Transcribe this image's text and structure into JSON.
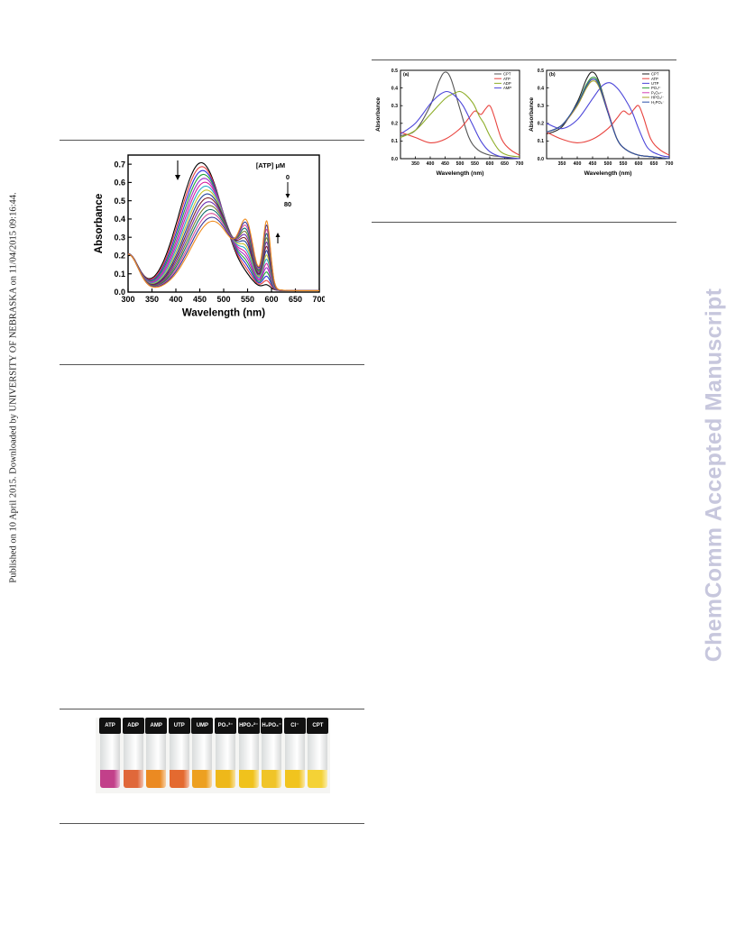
{
  "sidebar": {
    "text": "Published on 10 April 2015. Downloaded by UNIVERSITY OF NEBRASKA on 11/04/2015 09:16:44."
  },
  "watermark": {
    "text": "ChemComm Accepted Manuscript"
  },
  "figure_vials": {
    "labels": [
      "ATP",
      "ADP",
      "AMP",
      "UTP",
      "UMP",
      "PO₄³⁻",
      "HPO₄²⁻",
      "H₂PO₄⁻",
      "Cl⁻",
      "CPT"
    ],
    "liquid_colors": [
      "#c2408a",
      "#e0683a",
      "#eb8a22",
      "#e46a30",
      "#eda020",
      "#eeb81a",
      "#f0c21c",
      "#f0c428",
      "#f1c41e",
      "#f4d236"
    ]
  },
  "chart_data": [
    {
      "type": "line",
      "id": "titration",
      "xlabel": "Wavelength (nm)",
      "ylabel": "Absorbance",
      "xlim": [
        300,
        700
      ],
      "ylim": [
        0.0,
        0.75
      ],
      "xticks": [
        "300",
        "350",
        "400",
        "450",
        "500",
        "550",
        "600",
        "650",
        "700"
      ],
      "yticks": [
        "0.0",
        "0.1",
        "0.2",
        "0.3",
        "0.4",
        "0.5",
        "0.6",
        "0.7"
      ],
      "legend_title": "[ATP] μM",
      "range_start": "0",
      "range_end": "80",
      "curves": 16,
      "peak_start": 0.7,
      "peak_end": 0.38,
      "shoulder_start": 0.02,
      "shoulder_end": 0.3
    },
    {
      "type": "line",
      "id": "panel_a",
      "panel": "(a)",
      "xlabel": "Wavelength (nm)",
      "ylabel": "Absorbance",
      "xlim": [
        300,
        700
      ],
      "ylim": [
        0.0,
        0.5
      ],
      "xticks": [
        "350",
        "400",
        "450",
        "500",
        "550",
        "600",
        "650",
        "700"
      ],
      "yticks": [
        "0.0",
        "0.1",
        "0.2",
        "0.3",
        "0.4",
        "0.5"
      ],
      "series": [
        {
          "name": "CPT",
          "color": "#555555",
          "x": [
            300,
            350,
            400,
            430,
            450,
            470,
            500,
            530,
            560,
            600,
            650,
            700
          ],
          "y": [
            0.13,
            0.16,
            0.3,
            0.44,
            0.49,
            0.45,
            0.28,
            0.12,
            0.05,
            0.02,
            0.01,
            0.0
          ]
        },
        {
          "name": "ATP",
          "color": "#e8433e",
          "x": [
            300,
            350,
            400,
            450,
            500,
            530,
            550,
            570,
            585,
            600,
            615,
            640,
            670,
            700
          ],
          "y": [
            0.15,
            0.12,
            0.09,
            0.11,
            0.17,
            0.23,
            0.27,
            0.25,
            0.28,
            0.3,
            0.24,
            0.11,
            0.05,
            0.02
          ]
        },
        {
          "name": "ADP",
          "color": "#8fae2a",
          "x": [
            300,
            350,
            400,
            450,
            480,
            500,
            520,
            545,
            565,
            580,
            600,
            630,
            660,
            700
          ],
          "y": [
            0.12,
            0.16,
            0.25,
            0.34,
            0.37,
            0.38,
            0.36,
            0.31,
            0.24,
            0.2,
            0.13,
            0.05,
            0.02,
            0.01
          ]
        },
        {
          "name": "AMP",
          "color": "#4b45d9",
          "x": [
            300,
            350,
            400,
            430,
            455,
            480,
            510,
            540,
            570,
            600,
            640,
            700
          ],
          "y": [
            0.14,
            0.2,
            0.31,
            0.36,
            0.38,
            0.36,
            0.3,
            0.2,
            0.1,
            0.04,
            0.01,
            0.0
          ]
        }
      ]
    },
    {
      "type": "line",
      "id": "panel_b",
      "panel": "(b)",
      "xlabel": "Wavelength (nm)",
      "ylabel": "Absorbance",
      "xlim": [
        300,
        700
      ],
      "ylim": [
        0.0,
        0.5
      ],
      "xticks": [
        "350",
        "400",
        "450",
        "500",
        "550",
        "600",
        "650",
        "700"
      ],
      "yticks": [
        "0.0",
        "0.1",
        "0.2",
        "0.3",
        "0.4",
        "0.5"
      ],
      "series": [
        {
          "name": "CPT",
          "color": "#222222",
          "x": [
            300,
            350,
            400,
            430,
            450,
            470,
            500,
            530,
            560,
            600,
            650,
            700
          ],
          "y": [
            0.14,
            0.18,
            0.32,
            0.45,
            0.49,
            0.44,
            0.27,
            0.11,
            0.05,
            0.02,
            0.01,
            0.0
          ]
        },
        {
          "name": "ATP",
          "color": "#e8433e",
          "x": [
            300,
            350,
            400,
            450,
            500,
            530,
            550,
            570,
            585,
            600,
            615,
            640,
            670,
            700
          ],
          "y": [
            0.15,
            0.11,
            0.09,
            0.11,
            0.17,
            0.23,
            0.27,
            0.25,
            0.28,
            0.3,
            0.24,
            0.11,
            0.05,
            0.02
          ]
        },
        {
          "name": "UTP",
          "color": "#4b45d9",
          "x": [
            300,
            350,
            400,
            450,
            480,
            505,
            530,
            555,
            580,
            600,
            630,
            670,
            700
          ],
          "y": [
            0.2,
            0.17,
            0.22,
            0.34,
            0.41,
            0.43,
            0.4,
            0.34,
            0.26,
            0.17,
            0.06,
            0.02,
            0.01
          ]
        },
        {
          "name": "PO₄³⁻",
          "color": "#2e9a3a",
          "x": [
            300,
            350,
            400,
            430,
            450,
            470,
            500,
            530,
            560,
            600,
            650,
            700
          ],
          "y": [
            0.15,
            0.19,
            0.31,
            0.42,
            0.46,
            0.43,
            0.27,
            0.11,
            0.05,
            0.02,
            0.01,
            0.0
          ]
        },
        {
          "name": "P₂O₇⁴⁻",
          "color": "#d23fb5",
          "x": [
            300,
            350,
            400,
            430,
            450,
            470,
            500,
            530,
            560,
            600,
            650,
            700
          ],
          "y": [
            0.15,
            0.19,
            0.3,
            0.41,
            0.45,
            0.42,
            0.27,
            0.11,
            0.05,
            0.02,
            0.01,
            0.0
          ]
        },
        {
          "name": "HPO₄²⁻",
          "color": "#a8a22a",
          "x": [
            300,
            350,
            400,
            430,
            450,
            470,
            500,
            530,
            560,
            600,
            650,
            700
          ],
          "y": [
            0.15,
            0.19,
            0.3,
            0.4,
            0.44,
            0.41,
            0.26,
            0.11,
            0.05,
            0.02,
            0.01,
            0.0
          ]
        },
        {
          "name": "H₂PO₄⁻",
          "color": "#2a4fa8",
          "x": [
            300,
            350,
            400,
            430,
            450,
            470,
            500,
            530,
            560,
            600,
            650,
            700
          ],
          "y": [
            0.15,
            0.19,
            0.31,
            0.41,
            0.45,
            0.42,
            0.26,
            0.11,
            0.05,
            0.02,
            0.01,
            0.0
          ]
        }
      ]
    }
  ]
}
